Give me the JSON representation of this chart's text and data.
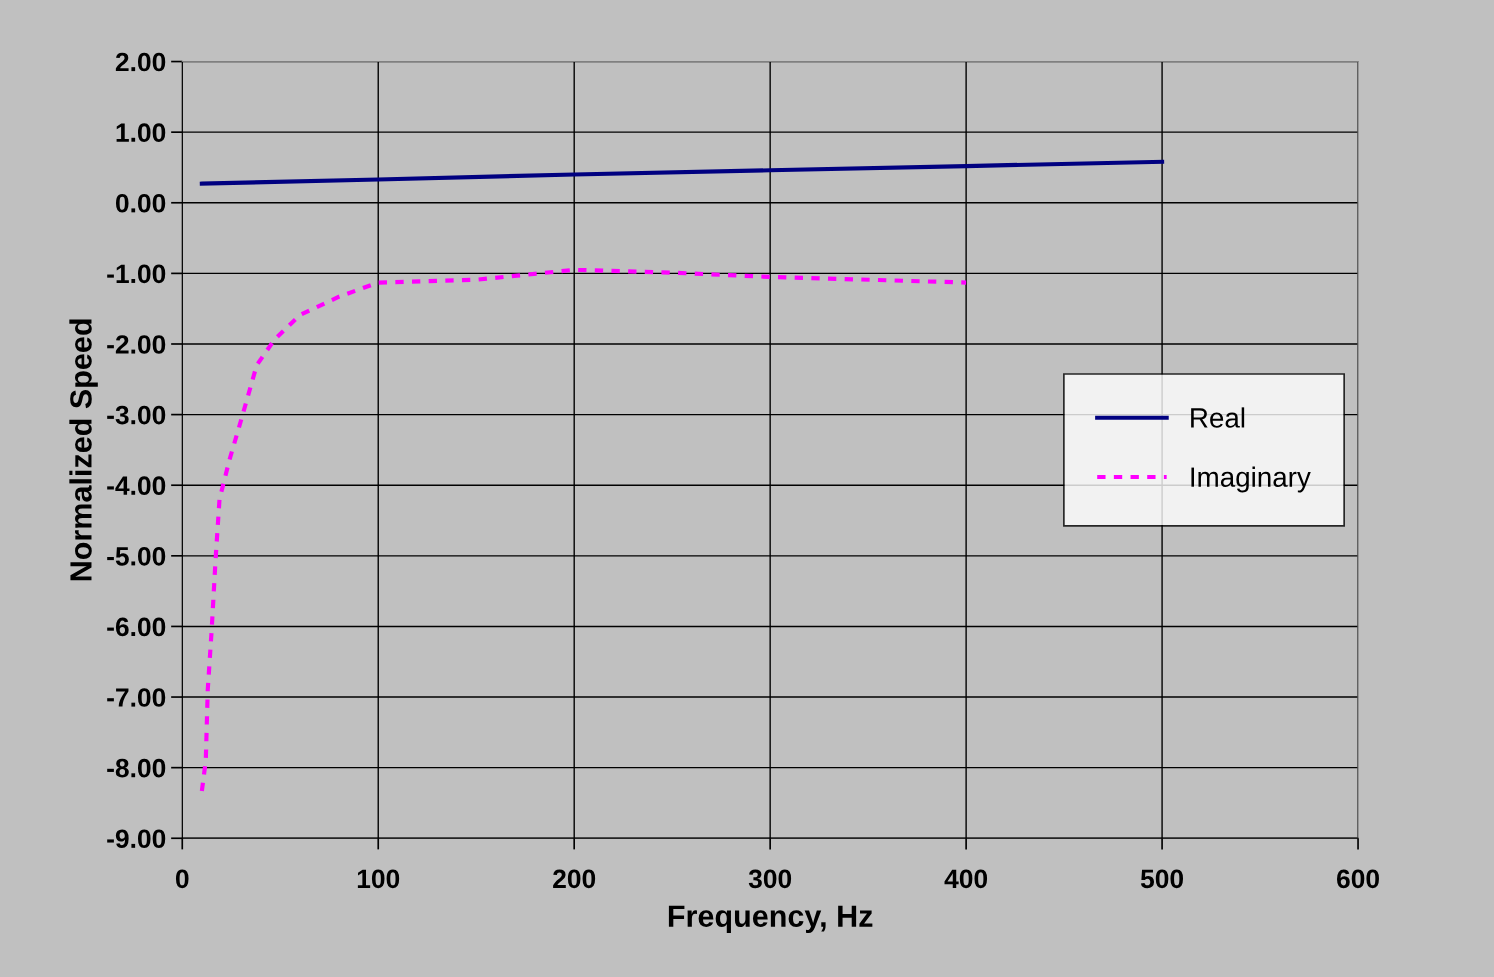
{
  "chart_data": {
    "type": "line",
    "xlabel": "Frequency, Hz",
    "ylabel": "Normalized Speed",
    "xlim": [
      0,
      600
    ],
    "xticks": [
      0,
      100,
      200,
      300,
      400,
      500,
      600
    ],
    "ylim": [
      -9,
      2
    ],
    "yticks": [
      {
        "value": 2,
        "label": "2.00"
      },
      {
        "value": 1,
        "label": "1.00"
      },
      {
        "value": 0,
        "label": "0.00"
      },
      {
        "value": -1,
        "label": "-1.00"
      },
      {
        "value": -2,
        "label": "-2.00"
      },
      {
        "value": -3,
        "label": "-3.00"
      },
      {
        "value": -4,
        "label": "-4.00"
      },
      {
        "value": -5,
        "label": "-5.00"
      },
      {
        "value": -6,
        "label": "-6.00"
      },
      {
        "value": -7,
        "label": "-7.00"
      },
      {
        "value": -8,
        "label": "-8.00"
      },
      {
        "value": -9,
        "label": "-9.00"
      }
    ],
    "grid": true,
    "legend": "right",
    "marker": "none",
    "series": [
      {
        "name": "Real",
        "color": "#000080",
        "line_style": "solid",
        "x": [
          10,
          100,
          200,
          300,
          400,
          500
        ],
        "values": [
          0.27,
          0.33,
          0.4,
          0.46,
          0.52,
          0.58
        ]
      },
      {
        "name": "Imaginary",
        "color": "#ff00ff",
        "line_style": "dashed",
        "x": [
          10,
          12,
          13,
          15,
          17,
          19,
          24,
          30,
          38,
          47,
          60,
          80,
          100,
          150,
          200,
          250,
          300,
          400
        ],
        "values": [
          -8.33,
          -7.9,
          -6.9,
          -6.05,
          -5.05,
          -4.2,
          -3.65,
          -3.08,
          -2.3,
          -1.94,
          -1.59,
          -1.33,
          -1.13,
          -1.09,
          -0.95,
          -0.99,
          -1.05,
          -1.13
        ]
      }
    ]
  }
}
